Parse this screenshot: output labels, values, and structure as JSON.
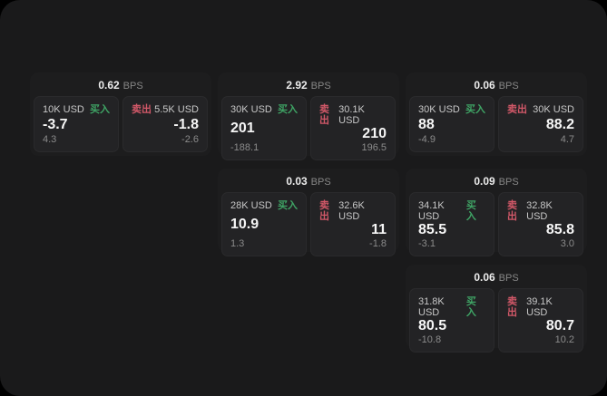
{
  "labels": {
    "bps_unit": "BPS",
    "buy": "买入",
    "sell": "卖出"
  },
  "colors": {
    "canvas": "#000000",
    "screen_bg": "#1a1a1b",
    "card_bg": "#1d1d1e",
    "panel_bg": "#232325",
    "buy_green": "#3fa465",
    "sell_red": "#d15868",
    "value_white": "#f6f6f6",
    "muted_gray": "#8b8b8b"
  },
  "cards": [
    {
      "bps": "0.62",
      "grid": {
        "row": 1,
        "col": 1
      },
      "buy": {
        "amount": "10K USD",
        "value": "-3.7",
        "sub": "4.3"
      },
      "sell": {
        "amount": "5.5K USD",
        "value": "-1.8",
        "sub": "-2.6"
      }
    },
    {
      "bps": "2.92",
      "grid": {
        "row": 1,
        "col": 2
      },
      "buy": {
        "amount": "30K USD",
        "value": "201",
        "sub": "-188.1"
      },
      "sell": {
        "amount": "30.1K USD",
        "value": "210",
        "sub": "196.5"
      }
    },
    {
      "bps": "0.06",
      "grid": {
        "row": 1,
        "col": 3
      },
      "buy": {
        "amount": "30K USD",
        "value": "88",
        "sub": "-4.9"
      },
      "sell": {
        "amount": "30K USD",
        "value": "88.2",
        "sub": "4.7"
      }
    },
    {
      "bps": "0.03",
      "grid": {
        "row": 2,
        "col": 2
      },
      "buy": {
        "amount": "28K USD",
        "value": "10.9",
        "sub": "1.3"
      },
      "sell": {
        "amount": "32.6K USD",
        "value": "11",
        "sub": "-1.8"
      }
    },
    {
      "bps": "0.09",
      "grid": {
        "row": 2,
        "col": 3
      },
      "buy": {
        "amount": "34.1K USD",
        "value": "85.5",
        "sub": "-3.1"
      },
      "sell": {
        "amount": "32.8K USD",
        "value": "85.8",
        "sub": "3.0"
      }
    },
    {
      "bps": "0.06",
      "grid": {
        "row": 3,
        "col": 3
      },
      "buy": {
        "amount": "31.8K USD",
        "value": "80.5",
        "sub": "-10.8"
      },
      "sell": {
        "amount": "39.1K USD",
        "value": "80.7",
        "sub": "10.2"
      }
    }
  ]
}
